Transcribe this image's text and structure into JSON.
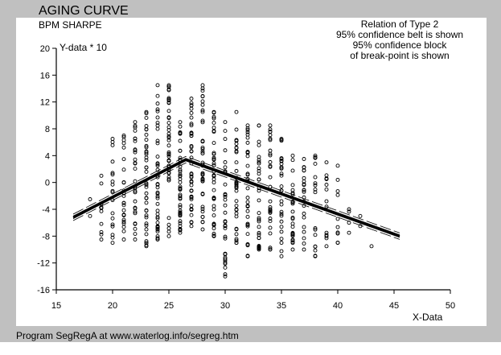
{
  "header": {
    "title": "AGING CURVE",
    "subtitle": "BPM SHARPE",
    "y_axis_label": "Y-data * 10"
  },
  "legend": {
    "lines": [
      "Relation of Type 2",
      "95% confidence belt is shown",
      "95% confidence block",
      "of break-point is shown"
    ]
  },
  "x_axis_label": "X-Data",
  "footer": "Program SegRegA at www.waterlog.info/segreg.htm",
  "colors": {
    "background": "#c0c0c0",
    "panel": "#ffffff",
    "ink": "#000000"
  },
  "chart_data": {
    "type": "scatter",
    "title": "AGING CURVE",
    "subtitle": "BPM SHARPE",
    "xlabel": "X-Data",
    "ylabel": "Y-data * 10",
    "xlim": [
      15,
      50
    ],
    "ylim": [
      -16,
      20
    ],
    "xticks": [
      15,
      20,
      25,
      30,
      35,
      40,
      45,
      50
    ],
    "yticks": [
      20,
      16,
      12,
      8,
      4,
      0,
      -4,
      -8,
      -12,
      -16
    ],
    "grid": false,
    "annotations": [
      "Relation of Type 2",
      "95% confidence belt is shown",
      "95% confidence block",
      "of break-point is shown"
    ],
    "columns": [
      {
        "x": 18,
        "ymin": -5,
        "ymax": -2.5,
        "n": 2
      },
      {
        "x": 19,
        "ymin": -8.5,
        "ymax": 1,
        "n": 10
      },
      {
        "x": 20,
        "ymin": -9,
        "ymax": 6.5,
        "n": 18
      },
      {
        "x": 21,
        "ymin": -8.5,
        "ymax": 7,
        "n": 26
      },
      {
        "x": 22,
        "ymin": -8.5,
        "ymax": 9,
        "n": 32
      },
      {
        "x": 23,
        "ymin": -9.5,
        "ymax": 10.5,
        "n": 38
      },
      {
        "x": 24,
        "ymin": -8.5,
        "ymax": 14.5,
        "n": 42
      },
      {
        "x": 25,
        "ymin": -8,
        "ymax": 14.5,
        "n": 44
      },
      {
        "x": 26,
        "ymin": -7.5,
        "ymax": 9,
        "n": 42
      },
      {
        "x": 27,
        "ymin": -6.5,
        "ymax": 12.5,
        "n": 42
      },
      {
        "x": 28,
        "ymin": -7,
        "ymax": 14.5,
        "n": 40
      },
      {
        "x": 29,
        "ymin": -8,
        "ymax": 10.5,
        "n": 40
      },
      {
        "x": 30,
        "ymin": -14,
        "ymax": 9,
        "n": 34
      },
      {
        "x": 31,
        "ymin": -9,
        "ymax": 10.5,
        "n": 36
      },
      {
        "x": 32,
        "ymin": -11,
        "ymax": 8.5,
        "n": 34
      },
      {
        "x": 33,
        "ymin": -10,
        "ymax": 8.5,
        "n": 32
      },
      {
        "x": 34,
        "ymin": -10,
        "ymax": 8.5,
        "n": 30
      },
      {
        "x": 35,
        "ymin": -11,
        "ymax": 6.5,
        "n": 28
      },
      {
        "x": 36,
        "ymin": -10,
        "ymax": 4,
        "n": 26
      },
      {
        "x": 37,
        "ymin": -10,
        "ymax": 3.5,
        "n": 22
      },
      {
        "x": 38,
        "ymin": -11,
        "ymax": 4,
        "n": 18
      },
      {
        "x": 39,
        "ymin": -9.5,
        "ymax": 3,
        "n": 14
      },
      {
        "x": 40,
        "ymin": -9,
        "ymax": 2.5,
        "n": 10
      },
      {
        "x": 41,
        "ymin": -7.5,
        "ymax": -4,
        "n": 4
      },
      {
        "x": 42,
        "ymin": -6.5,
        "ymax": -5,
        "n": 2
      },
      {
        "x": 43,
        "ymin": -9.5,
        "ymax": -9.5,
        "n": 1
      }
    ],
    "segmented_regression": {
      "breakpoint": {
        "x": 26.5,
        "y": 3.4
      },
      "segments": [
        {
          "x": [
            16.5,
            26.5
          ],
          "y": [
            -5.2,
            3.4
          ]
        },
        {
          "x": [
            26.5,
            45.5
          ],
          "y": [
            3.4,
            -8.0
          ]
        }
      ],
      "confidence_belt_95": true,
      "breakpoint_confidence_block_95": true
    }
  }
}
